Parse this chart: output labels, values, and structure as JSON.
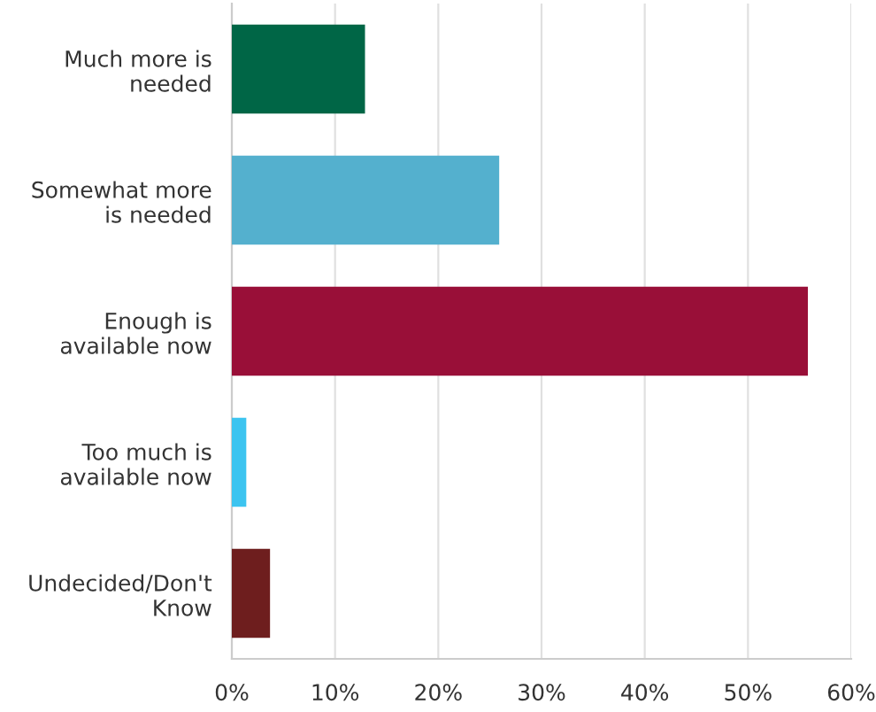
{
  "chart_data": {
    "type": "bar",
    "orientation": "horizontal",
    "categories": [
      "Much more is\nneeded",
      "Somewhat more\nis needed",
      "Enough is\navailable now",
      "Too much is\navailable now",
      "Undecided/Don't\nKnow"
    ],
    "values": [
      12.9,
      25.9,
      55.8,
      1.4,
      3.7
    ],
    "colors": [
      "#006646",
      "#54b0ce",
      "#990f38",
      "#3cc4f0",
      "#6e1e1e"
    ],
    "xlim": [
      0,
      60
    ],
    "xticks": [
      {
        "value": 0,
        "label": "0%"
      },
      {
        "value": 10,
        "label": "10%"
      },
      {
        "value": 20,
        "label": "20%"
      },
      {
        "value": 30,
        "label": "30%"
      },
      {
        "value": 40,
        "label": "40%"
      },
      {
        "value": 50,
        "label": "50%"
      },
      {
        "value": 60,
        "label": "60%"
      }
    ],
    "grid": "x"
  }
}
